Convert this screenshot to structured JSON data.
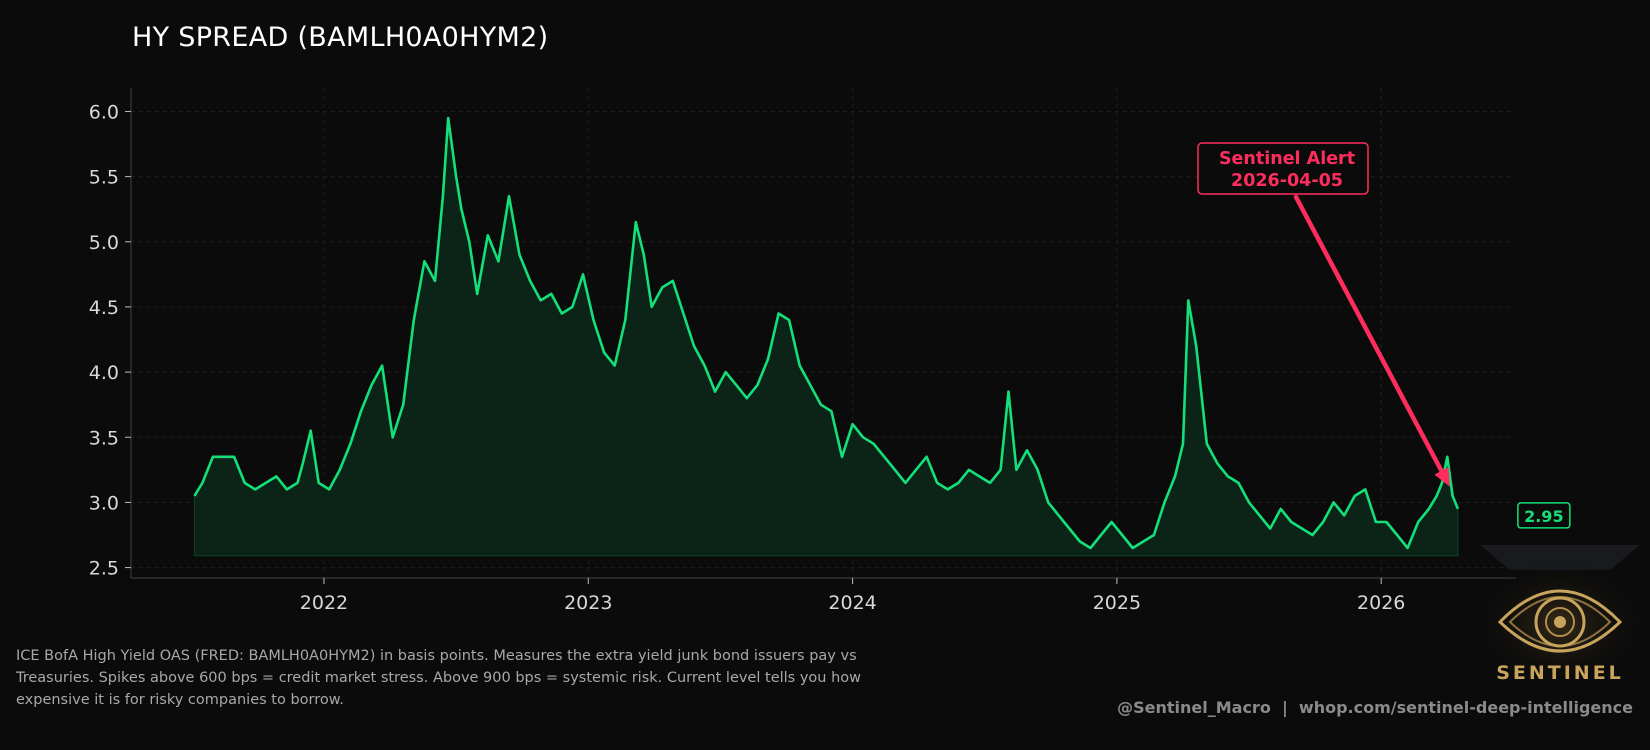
{
  "header": {
    "title": "HY SPREAD (BAMLH0A0HYM2)"
  },
  "description": "ICE BofA High Yield OAS (FRED: BAMLH0A0HYM2) in basis points. Measures the extra yield junk bond issuers pay vs Treasuries. Spikes above 600 bps = credit market stress. Above 900 bps = systemic risk. Current level tells you how expensive it is for risky companies to borrow.",
  "footer": {
    "handle": "@Sentinel_Macro  |  whop.com/sentinel-deep-intelligence"
  },
  "logo": {
    "text": "SENTINEL",
    "icon": "eye-icon"
  },
  "colors": {
    "background": "#0b0b0b",
    "line": "#14e07a",
    "fill": "#0b2417",
    "alert": "#ff2d5e",
    "axis_text": "#d8d8d8",
    "grid": "#1e1e1e",
    "logo_gold": "#c9a45c"
  },
  "chart_data": {
    "type": "area",
    "title": "HY SPREAD (BAMLH0A0HYM2)",
    "xlabel": "",
    "ylabel": "",
    "x_ticks": [
      2022,
      2023,
      2024,
      2025,
      2026
    ],
    "y_ticks": [
      2.5,
      3.0,
      3.5,
      4.0,
      4.5,
      5.0,
      5.5,
      6.0
    ],
    "y_tick_labels": [
      "2.5",
      "3.0",
      "3.5",
      "4.0",
      "4.5",
      "5.0",
      "5.5",
      "6.0"
    ],
    "xlim": [
      2021.27,
      2026.51
    ],
    "ylim": [
      2.42,
      6.18
    ],
    "fill_baseline": 2.59,
    "grid": true,
    "series": [
      {
        "x": [
          2021.51,
          2021.54,
          2021.58,
          2021.62,
          2021.66,
          2021.7,
          2021.74,
          2021.78,
          2021.82,
          2021.86,
          2021.9,
          2021.92,
          2021.95,
          2021.98,
          2022.02,
          2022.06,
          2022.1,
          2022.14,
          2022.18,
          2022.22,
          2022.26,
          2022.3,
          2022.34,
          2022.38,
          2022.42,
          2022.45,
          2022.47,
          2022.5,
          2022.52,
          2022.55,
          2022.58,
          2022.62,
          2022.66,
          2022.7,
          2022.74,
          2022.78,
          2022.82,
          2022.86,
          2022.9,
          2022.94,
          2022.98,
          2023.02,
          2023.06,
          2023.1,
          2023.14,
          2023.18,
          2023.21,
          2023.24,
          2023.28,
          2023.32,
          2023.36,
          2023.4,
          2023.44,
          2023.48,
          2023.52,
          2023.56,
          2023.6,
          2023.64,
          2023.68,
          2023.72,
          2023.76,
          2023.8,
          2023.84,
          2023.88,
          2023.92,
          2023.96,
          2024.0,
          2024.04,
          2024.08,
          2024.12,
          2024.16,
          2024.2,
          2024.24,
          2024.28,
          2024.32,
          2024.36,
          2024.4,
          2024.44,
          2024.48,
          2024.52,
          2024.56,
          2024.59,
          2024.62,
          2024.66,
          2024.7,
          2024.74,
          2024.78,
          2024.82,
          2024.86,
          2024.9,
          2024.94,
          2024.98,
          2025.02,
          2025.06,
          2025.1,
          2025.14,
          2025.18,
          2025.22,
          2025.25,
          2025.27,
          2025.3,
          2025.34,
          2025.38,
          2025.42,
          2025.46,
          2025.5,
          2025.54,
          2025.58,
          2025.62,
          2025.66,
          2025.7,
          2025.74,
          2025.78,
          2025.82,
          2025.86,
          2025.9,
          2025.94,
          2025.98,
          2026.02,
          2026.06,
          2026.1,
          2026.14,
          2026.18,
          2026.21,
          2026.23,
          2026.25,
          2026.27,
          2026.29
        ],
        "y": [
          3.05,
          3.15,
          3.35,
          3.35,
          3.35,
          3.15,
          3.1,
          3.15,
          3.2,
          3.1,
          3.15,
          3.3,
          3.55,
          3.15,
          3.1,
          3.25,
          3.45,
          3.7,
          3.9,
          4.05,
          3.5,
          3.75,
          4.4,
          4.85,
          4.7,
          5.35,
          5.95,
          5.5,
          5.25,
          5.0,
          4.6,
          5.05,
          4.85,
          5.35,
          4.9,
          4.7,
          4.55,
          4.6,
          4.45,
          4.5,
          4.75,
          4.4,
          4.15,
          4.05,
          4.4,
          5.15,
          4.9,
          4.5,
          4.65,
          4.7,
          4.45,
          4.2,
          4.05,
          3.85,
          4.0,
          3.9,
          3.8,
          3.9,
          4.1,
          4.45,
          4.4,
          4.05,
          3.9,
          3.75,
          3.7,
          3.35,
          3.6,
          3.5,
          3.45,
          3.35,
          3.25,
          3.15,
          3.25,
          3.35,
          3.15,
          3.1,
          3.15,
          3.25,
          3.2,
          3.15,
          3.25,
          3.85,
          3.25,
          3.4,
          3.25,
          3.0,
          2.9,
          2.8,
          2.7,
          2.65,
          2.75,
          2.85,
          2.75,
          2.65,
          2.7,
          2.75,
          3.0,
          3.2,
          3.45,
          4.55,
          4.2,
          3.45,
          3.3,
          3.2,
          3.15,
          3.0,
          2.9,
          2.8,
          2.95,
          2.85,
          2.8,
          2.75,
          2.85,
          3.0,
          2.9,
          3.05,
          3.1,
          2.85,
          2.85,
          2.75,
          2.65,
          2.85,
          2.95,
          3.05,
          3.15,
          3.35,
          3.05,
          2.95
        ],
        "end_label": "2.95"
      }
    ],
    "annotations": [
      {
        "text_line1": "Sentinel Alert",
        "text_line2": "2026-04-05",
        "x": 2026.26,
        "y": 3.12
      }
    ]
  }
}
